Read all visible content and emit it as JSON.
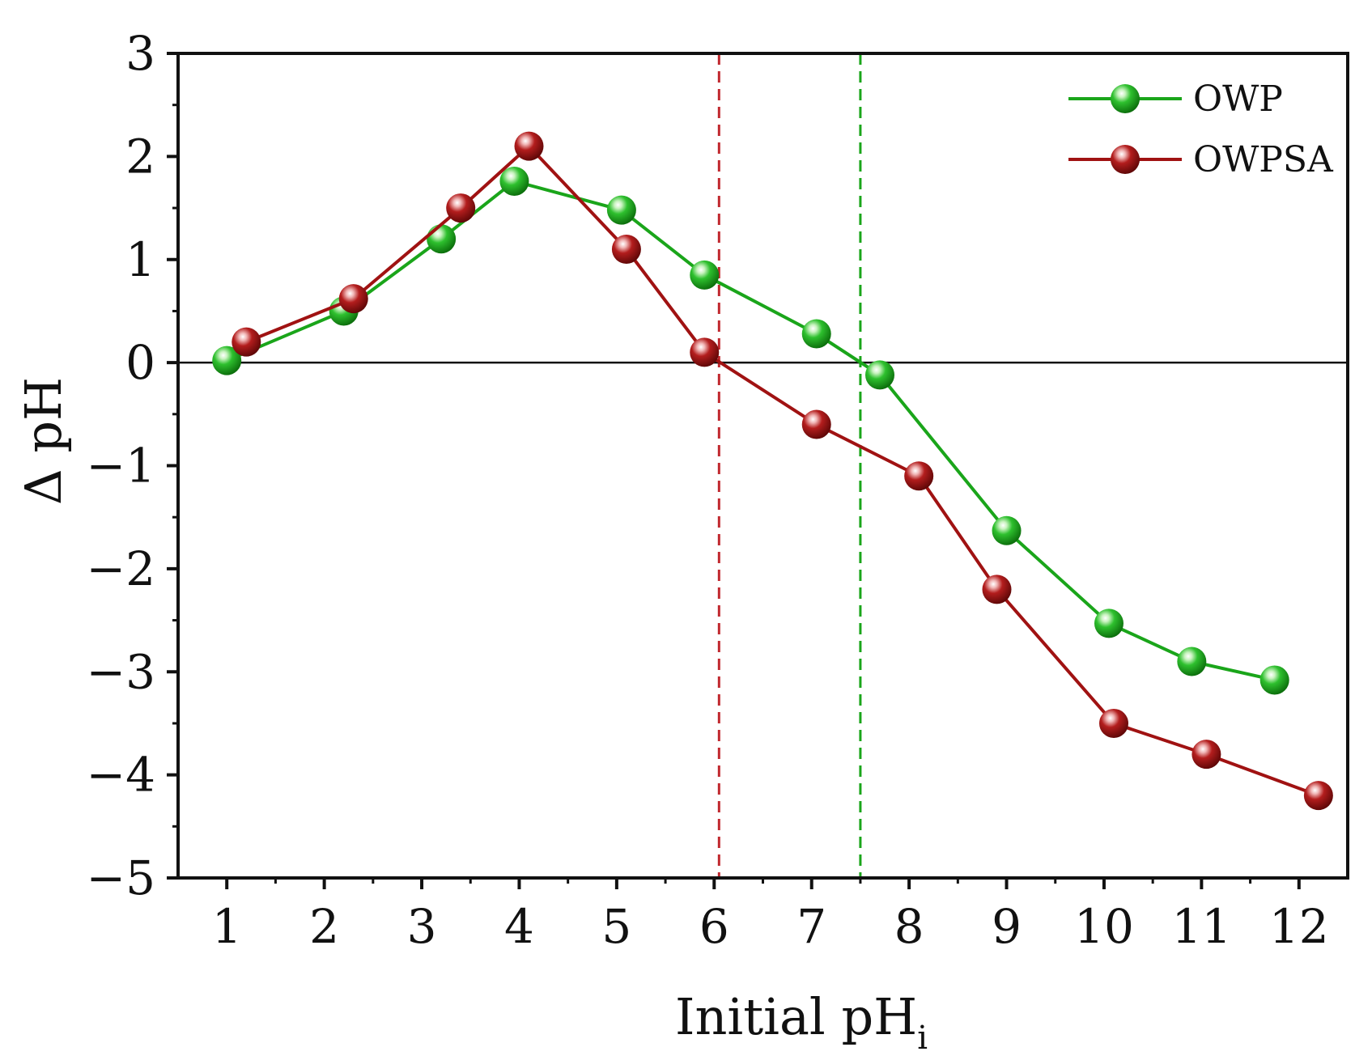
{
  "chart_data": {
    "type": "line",
    "title": "",
    "xlabel": "Initial pH",
    "xlabel_sub": "i",
    "ylabel": "Δ pH",
    "xlim": [
      0.5,
      12.5
    ],
    "ylim": [
      -5,
      3
    ],
    "xticks": [
      1,
      2,
      3,
      4,
      5,
      6,
      7,
      8,
      9,
      10,
      11,
      12
    ],
    "yticks": [
      3,
      2,
      1,
      0,
      -1,
      -2,
      -3,
      -4,
      -5
    ],
    "ytick_labels": [
      "3",
      "2",
      "1",
      "0",
      "−1",
      "−2",
      "−3",
      "−4",
      "−5"
    ],
    "zero_line": true,
    "reference_lines": [
      {
        "x": 6.05,
        "series": "OWPSA",
        "color": "#c0272d",
        "style": "dashed"
      },
      {
        "x": 7.5,
        "series": "OWP",
        "color": "#1aa51a",
        "style": "dashed"
      }
    ],
    "legend_position": "top-right",
    "series": [
      {
        "name": "OWP",
        "color": "#1aa51a",
        "x": [
          1.0,
          2.2,
          3.2,
          3.95,
          5.05,
          5.9,
          7.05,
          7.7,
          9.0,
          10.05,
          10.9,
          11.75
        ],
        "y": [
          0.02,
          0.5,
          1.2,
          1.76,
          1.48,
          0.85,
          0.28,
          -0.12,
          -1.63,
          -2.53,
          -2.9,
          -3.08
        ]
      },
      {
        "name": "OWPSA",
        "color": "#a01212",
        "x": [
          1.2,
          2.3,
          3.4,
          4.1,
          5.1,
          5.9,
          7.05,
          8.1,
          8.9,
          10.1,
          11.05,
          12.2
        ],
        "y": [
          0.2,
          0.62,
          1.5,
          2.1,
          1.1,
          0.1,
          -0.6,
          -1.1,
          -2.2,
          -3.5,
          -3.8,
          -4.2
        ]
      }
    ]
  }
}
